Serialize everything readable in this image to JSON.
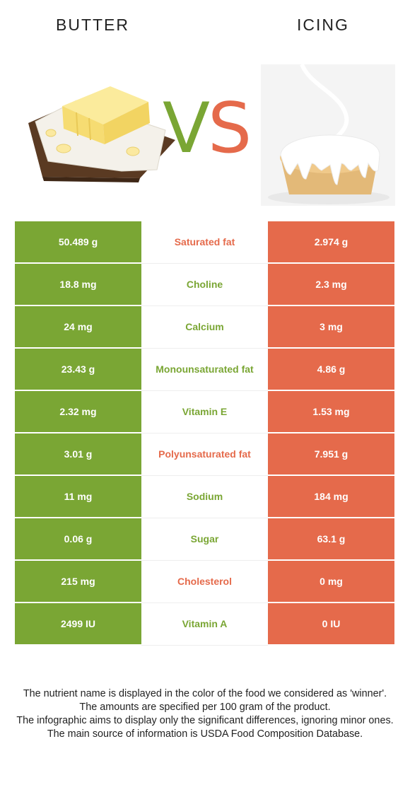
{
  "header": {
    "left_food": "BUTTER",
    "right_food": "ICING",
    "vs_v": "V",
    "vs_s": "S"
  },
  "colors": {
    "left": "#7aa634",
    "right": "#e56a4b"
  },
  "rows": [
    {
      "left": "50.489 g",
      "nutrient": "Saturated fat",
      "right": "2.974 g",
      "winner": "right"
    },
    {
      "left": "18.8 mg",
      "nutrient": "Choline",
      "right": "2.3 mg",
      "winner": "left"
    },
    {
      "left": "24 mg",
      "nutrient": "Calcium",
      "right": "3 mg",
      "winner": "left"
    },
    {
      "left": "23.43 g",
      "nutrient": "Monounsaturated fat",
      "right": "4.86 g",
      "winner": "left"
    },
    {
      "left": "2.32 mg",
      "nutrient": "Vitamin E",
      "right": "1.53 mg",
      "winner": "left"
    },
    {
      "left": "3.01 g",
      "nutrient": "Polyunsaturated fat",
      "right": "7.951 g",
      "winner": "right"
    },
    {
      "left": "11 mg",
      "nutrient": "Sodium",
      "right": "184 mg",
      "winner": "left"
    },
    {
      "left": "0.06 g",
      "nutrient": "Sugar",
      "right": "63.1 g",
      "winner": "left"
    },
    {
      "left": "215 mg",
      "nutrient": "Cholesterol",
      "right": "0 mg",
      "winner": "right"
    },
    {
      "left": "2499 IU",
      "nutrient": "Vitamin A",
      "right": "0 IU",
      "winner": "left"
    }
  ],
  "footnote": [
    "The nutrient name is displayed in the color of the food we considered as 'winner'.",
    "The amounts are specified per 100 gram of the product.",
    "The infographic aims to display only the significant differences, ignoring minor ones.",
    "The main source of information is USDA Food Composition Database."
  ]
}
